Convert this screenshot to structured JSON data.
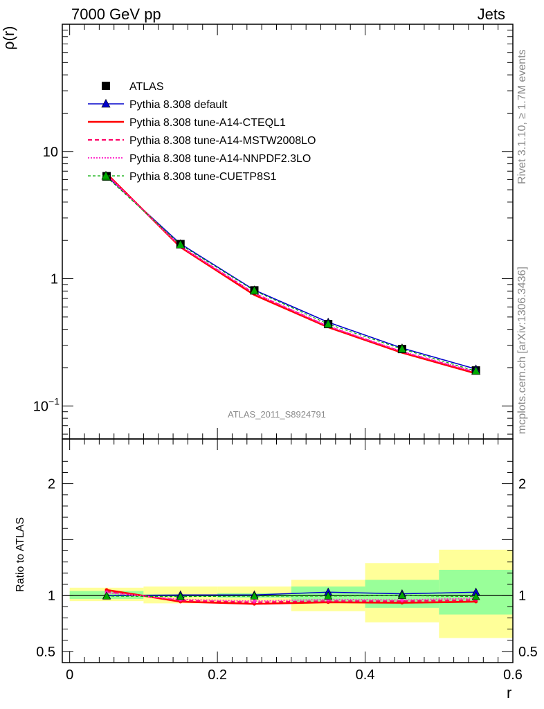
{
  "header": {
    "left": "7000 GeV pp",
    "right": "Jets"
  },
  "side_text": {
    "rivet": "Rivet 3.1.10, ≥ 1.7M events",
    "mcplots": "mcplots.cern.ch [arXiv:1306.3436]"
  },
  "watermark": "ATLAS_2011_S8924791",
  "colors": {
    "atlas": "#000000",
    "default": "#0000cc",
    "cteql1": "#ff0000",
    "mstw": "#ff0066",
    "nnpdf": "#ff33cc",
    "cuetp8s1": "#00aa00",
    "band_inner": "#99ff99",
    "band_outer": "#ffff99"
  },
  "chart_data": [
    {
      "type": "line",
      "panel": "main",
      "ylabel": "ρ(r)",
      "yscale": "log",
      "ylim": [
        0.055,
        100
      ],
      "xlim": [
        -0.01,
        0.6
      ],
      "y_ticks": [
        {
          "value": 10,
          "label": "10"
        },
        {
          "value": 1,
          "label": "1"
        },
        {
          "value": 0.1,
          "label": "10",
          "sup": "−1"
        }
      ],
      "x": [
        0.05,
        0.15,
        0.25,
        0.35,
        0.45,
        0.55
      ],
      "series": [
        {
          "name": "ATLAS",
          "key": "atlas",
          "style": "square",
          "values": [
            6.4,
            1.87,
            0.81,
            0.44,
            0.28,
            0.19
          ]
        },
        {
          "name": "Pythia 8.308 default",
          "key": "default",
          "style": "solid-triangle",
          "values": [
            6.4,
            1.88,
            0.815,
            0.455,
            0.285,
            0.195
          ]
        },
        {
          "name": "Pythia 8.308 tune-A14-CTEQL1",
          "key": "cteql1",
          "style": "solid-thick",
          "values": [
            6.7,
            1.77,
            0.745,
            0.415,
            0.262,
            0.18
          ]
        },
        {
          "name": "Pythia 8.308 tune-A14-MSTW2008LO",
          "key": "mstw",
          "style": "dashed",
          "values": [
            6.6,
            1.79,
            0.765,
            0.42,
            0.266,
            0.183
          ]
        },
        {
          "name": "Pythia 8.308 tune-A14-NNPDF2.3LO",
          "key": "nnpdf",
          "style": "dotted",
          "values": [
            6.55,
            1.8,
            0.77,
            0.425,
            0.268,
            0.185
          ]
        },
        {
          "name": "Pythia 8.308 tune-CUETP8S1",
          "key": "cuetp8s1",
          "style": "dashed-triangle",
          "values": [
            6.3,
            1.85,
            0.805,
            0.44,
            0.28,
            0.188
          ]
        }
      ],
      "legend_position": "top-left"
    },
    {
      "type": "line",
      "panel": "ratio",
      "ylabel": "Ratio to ATLAS",
      "xlabel": "r",
      "ylim": [
        0.4,
        2.4
      ],
      "xlim": [
        -0.01,
        0.6
      ],
      "x_ticks": [
        {
          "value": 0,
          "label": "0"
        },
        {
          "value": 0.2,
          "label": "0.2"
        },
        {
          "value": 0.4,
          "label": "0.4"
        },
        {
          "value": 0.6,
          "label": "0.6"
        }
      ],
      "y_ticks": [
        {
          "value": 2,
          "label": "2"
        },
        {
          "value": 1,
          "label": "1"
        },
        {
          "value": 0.5,
          "label": "0.5"
        }
      ],
      "bins": [
        [
          0.0,
          0.1
        ],
        [
          0.1,
          0.2
        ],
        [
          0.2,
          0.3
        ],
        [
          0.3,
          0.4
        ],
        [
          0.4,
          0.5
        ],
        [
          0.5,
          0.6
        ]
      ],
      "band_inner": [
        [
          0.97,
          1.04
        ],
        [
          0.99,
          1.01
        ],
        [
          0.98,
          1.02
        ],
        [
          0.94,
          1.08
        ],
        [
          0.89,
          1.14
        ],
        [
          0.83,
          1.23
        ]
      ],
      "band_outer": [
        [
          0.95,
          1.07
        ],
        [
          0.93,
          1.08
        ],
        [
          0.94,
          1.08
        ],
        [
          0.86,
          1.14
        ],
        [
          0.76,
          1.29
        ],
        [
          0.62,
          1.41
        ]
      ],
      "x": [
        0.05,
        0.15,
        0.25,
        0.35,
        0.45,
        0.55
      ],
      "series": [
        {
          "key": "default",
          "style": "solid-triangle",
          "values": [
            1.0,
            1.005,
            1.005,
            1.03,
            1.015,
            1.03
          ]
        },
        {
          "key": "cteql1",
          "style": "solid-thick",
          "values": [
            1.05,
            0.945,
            0.925,
            0.94,
            0.935,
            0.945
          ]
        },
        {
          "key": "mstw",
          "style": "dashed",
          "values": [
            1.035,
            0.955,
            0.94,
            0.95,
            0.95,
            0.96
          ]
        },
        {
          "key": "nnpdf",
          "style": "dotted",
          "values": [
            1.025,
            0.965,
            0.95,
            0.965,
            0.96,
            0.975
          ]
        },
        {
          "key": "cuetp8s1",
          "style": "dashed-triangle",
          "values": [
            0.995,
            0.99,
            0.995,
            0.995,
            1.0,
            0.99
          ]
        }
      ]
    }
  ]
}
